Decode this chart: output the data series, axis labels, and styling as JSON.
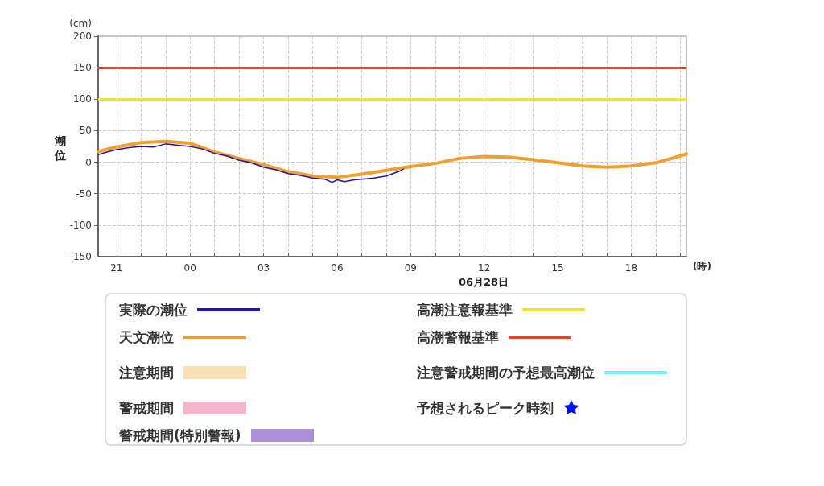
{
  "chart_data": {
    "type": "line",
    "xlabel": "(時)",
    "ylabel": "(cm)",
    "annotations": [
      "潮位",
      "06月28日"
    ],
    "xlim": [
      "--06-27T20:15",
      "--06-28T20:15"
    ],
    "xticks": [
      {
        "value": "--06-27T21:00",
        "label": "21"
      },
      {
        "value": "--06-27T22:00",
        "label": null
      },
      {
        "value": "--06-27T23:00",
        "label": null
      },
      {
        "value": "--06-28T00:00",
        "label": "00"
      },
      {
        "value": "--06-28T01:00",
        "label": null
      },
      {
        "value": "--06-28T02:00",
        "label": null
      },
      {
        "value": "--06-28T03:00",
        "label": "03"
      },
      {
        "value": "--06-28T04:00",
        "label": null
      },
      {
        "value": "--06-28T05:00",
        "label": null
      },
      {
        "value": "--06-28T06:00",
        "label": "06"
      },
      {
        "value": "--06-28T07:00",
        "label": null
      },
      {
        "value": "--06-28T08:00",
        "label": null
      },
      {
        "value": "--06-28T09:00",
        "label": "09"
      },
      {
        "value": "--06-28T10:00",
        "label": null
      },
      {
        "value": "--06-28T11:00",
        "label": null
      },
      {
        "value": "--06-28T12:00",
        "label": "12"
      },
      {
        "value": "--06-28T13:00",
        "label": null
      },
      {
        "value": "--06-28T14:00",
        "label": null
      },
      {
        "value": "--06-28T15:00",
        "label": "15"
      },
      {
        "value": "--06-28T16:00",
        "label": null
      },
      {
        "value": "--06-28T17:00",
        "label": null
      },
      {
        "value": "--06-28T18:00",
        "label": "18"
      },
      {
        "value": "--06-28T19:00",
        "label": null
      },
      {
        "value": "--06-28T20:00",
        "label": null
      }
    ],
    "ylim": [
      -150,
      200
    ],
    "yticks": [
      -150,
      -100,
      -50,
      0,
      50,
      100,
      150,
      200
    ],
    "grid": true,
    "legend": "bottom",
    "marker": "none",
    "series": [
      {
        "name": "実際の潮位",
        "color": "#2a10b8",
        "x": [
          "--06-27T20:15",
          "--06-27T20:36",
          "--06-27T21:00",
          "--06-27T21:30",
          "--06-27T22:00",
          "--06-27T22:30",
          "--06-27T23:00",
          "--06-27T23:30",
          "--06-28T00:00",
          "--06-28T00:30",
          "--06-28T01:00",
          "--06-28T01:30",
          "--06-28T02:00",
          "--06-28T02:24",
          "--06-28T02:48",
          "--06-28T03:00",
          "--06-28T03:30",
          "--06-28T04:00",
          "--06-28T04:30",
          "--06-28T05:00",
          "--06-28T05:30",
          "--06-28T05:48",
          "--06-28T06:00",
          "--06-28T06:18",
          "--06-28T06:42",
          "--06-28T07:00",
          "--06-28T07:30",
          "--06-28T08:00",
          "--06-28T08:30",
          "--06-28T08:42"
        ],
        "values": [
          12,
          16,
          20,
          23,
          25,
          24,
          29,
          27,
          25,
          21,
          14,
          10,
          3,
          0,
          -5,
          -8,
          -12,
          -18,
          -21,
          -25,
          -27,
          -32,
          -28,
          -31,
          -28,
          -27,
          -25,
          -22,
          -15,
          -11
        ]
      },
      {
        "name": "天文潮位",
        "color": "#f0a030",
        "x": [
          "--06-27T20:15",
          "--06-27T21:00",
          "--06-27T22:00",
          "--06-27T23:00",
          "--06-28T00:00",
          "--06-28T01:00",
          "--06-28T02:00",
          "--06-28T03:00",
          "--06-28T04:00",
          "--06-28T05:00",
          "--06-28T06:00",
          "--06-28T07:00",
          "--06-28T08:00",
          "--06-28T09:00",
          "--06-28T10:00",
          "--06-28T11:00",
          "--06-28T12:00",
          "--06-28T13:00",
          "--06-28T14:00",
          "--06-28T15:00",
          "--06-28T16:00",
          "--06-28T17:00",
          "--06-28T18:00",
          "--06-28T19:00",
          "--06-28T20:00",
          "--06-28T20:15"
        ],
        "values": [
          17,
          24,
          31,
          33,
          30,
          16,
          6,
          -4,
          -15,
          -22,
          -24,
          -19,
          -13,
          -7,
          -2,
          6,
          9,
          8,
          4,
          -1,
          -6,
          -8,
          -6,
          -1,
          10,
          13
        ]
      },
      {
        "name": "注意期間",
        "type": "area",
        "color": "#f8dfb4"
      },
      {
        "name": "警戒期間",
        "type": "area",
        "color": "#f4b4cc"
      },
      {
        "name": "警戒期間(特別警報)",
        "type": "area",
        "color": "#aa90d8"
      },
      {
        "name": "注意警戒期間の予想最高潮位",
        "color": "#70f0f8"
      },
      {
        "name": "予想されるピーク時刻",
        "type": "scatter",
        "marker": "star",
        "color": "#0010f0"
      }
    ],
    "ref_lines": [
      {
        "axis": "y",
        "value": 100,
        "label": "高潮注意報基準",
        "color": "#f0e040"
      },
      {
        "axis": "y",
        "value": 150,
        "label": "高潮警報基準",
        "color": "#e84020"
      }
    ]
  }
}
